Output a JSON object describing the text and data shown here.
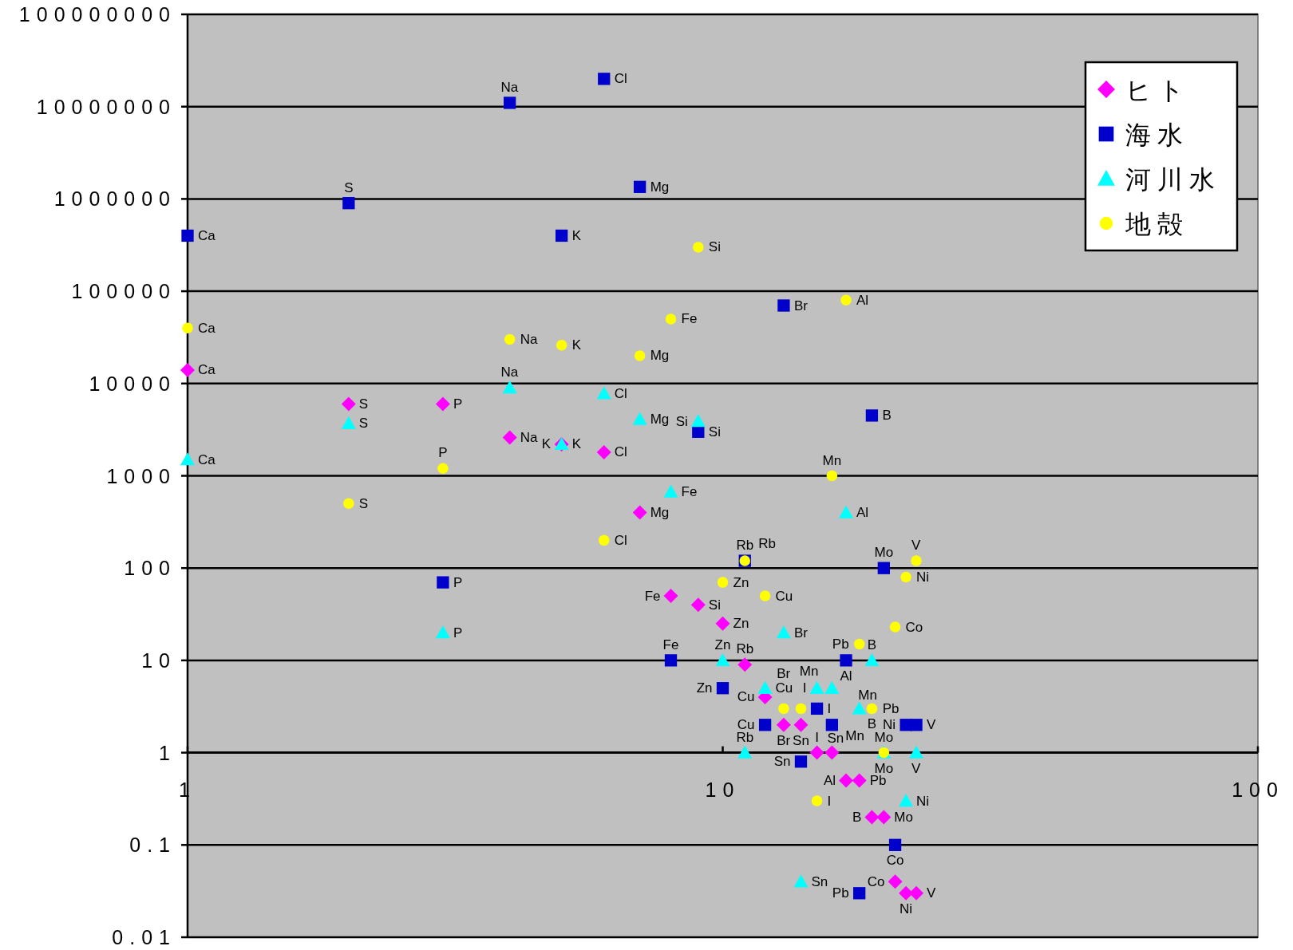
{
  "chart_data": {
    "type": "scatter",
    "x": [
      1,
      2,
      3,
      4,
      5,
      6,
      7,
      8,
      9,
      10,
      11,
      12,
      13,
      14,
      15,
      16,
      17,
      18,
      19,
      20,
      21,
      22,
      23
    ],
    "xlim": [
      1,
      100
    ],
    "xticks": [
      1,
      10,
      100
    ],
    "log": "xy",
    "ylim": [
      0.01,
      100000000
    ],
    "yticks": [
      0.01,
      0.1,
      1,
      10,
      100,
      1000,
      10000,
      100000,
      1000000,
      10000000,
      100000000
    ],
    "grid": "y",
    "legend": "top right",
    "series": [
      {
        "name": "ヒト",
        "color": "#ff00ff",
        "marker": "diamond",
        "values": [
          14000,
          6000,
          6000,
          2600,
          2200,
          1800,
          400,
          50,
          40,
          25,
          9,
          4,
          2,
          2,
          1,
          1,
          0.5,
          0.5,
          0.2,
          0.2,
          0.04,
          0.03,
          0.03
        ]
      },
      {
        "name": "海水",
        "color": "#0000cc",
        "marker": "square",
        "values": [
          400000,
          900000,
          70,
          11000000,
          400000,
          20000000,
          1350000,
          10,
          3000,
          5,
          120,
          2,
          70000,
          0.8,
          3,
          2,
          10,
          0.03,
          4500,
          100,
          0.1,
          2,
          2
        ]
      },
      {
        "name": "河川水",
        "color": "#00ffff",
        "marker": "triangle",
        "values": [
          1500,
          3700,
          20,
          9000,
          2200,
          7800,
          4100,
          670,
          3900,
          10,
          1,
          5,
          20,
          0.04,
          5,
          5,
          400,
          3,
          10,
          1,
          null,
          0.3,
          1
        ]
      },
      {
        "name": "地殻",
        "color": "#ffff00",
        "marker": "circle",
        "values": [
          40000,
          500,
          1200,
          30000,
          26000,
          200,
          20000,
          50000,
          300000,
          70,
          120,
          50,
          3,
          3,
          0.3,
          1000,
          80000,
          15,
          3,
          1,
          23,
          80,
          120
        ]
      }
    ],
    "annotations": [
      {
        "text": "Ca",
        "x": 1,
        "y": 14000
      },
      {
        "text": "S",
        "x": 2,
        "y": 6000
      },
      {
        "text": "P",
        "x": 3,
        "y": 6000
      },
      {
        "text": "Na",
        "x": 4,
        "y": 2600
      },
      {
        "text": "K",
        "x": 5,
        "y": 2200
      },
      {
        "text": "Cl",
        "x": 6,
        "y": 1800
      },
      {
        "text": "Mg",
        "x": 7,
        "y": 400
      },
      {
        "text": "Fe",
        "x": 8,
        "y": 50
      },
      {
        "text": "Si",
        "x": 9,
        "y": 40
      },
      {
        "text": "Zn",
        "x": 10,
        "y": 25
      },
      {
        "text": "Rb",
        "x": 11,
        "y": 9
      },
      {
        "text": "Cu",
        "x": 12,
        "y": 4
      },
      {
        "text": "Br",
        "x": 13,
        "y": 2
      },
      {
        "text": "Sn",
        "x": 14,
        "y": 2
      },
      {
        "text": "I",
        "x": 15,
        "y": 1
      },
      {
        "text": "Mn",
        "x": 16,
        "y": 1
      },
      {
        "text": "Al",
        "x": 17,
        "y": 0.5
      },
      {
        "text": "Pb",
        "x": 18,
        "y": 0.5
      },
      {
        "text": "B",
        "x": 19,
        "y": 0.2
      },
      {
        "text": "Mo",
        "x": 20,
        "y": 0.2
      },
      {
        "text": "Co",
        "x": 21,
        "y": 0.04
      },
      {
        "text": "Ni",
        "x": 22,
        "y": 0.03
      },
      {
        "text": "V",
        "x": 23,
        "y": 0.03
      },
      {
        "text": "Ca",
        "x": 1,
        "y": 400000
      },
      {
        "text": "S",
        "x": 2,
        "y": 900000
      },
      {
        "text": "P",
        "x": 3,
        "y": 70
      },
      {
        "text": "Na",
        "x": 4,
        "y": 11000000
      },
      {
        "text": "K",
        "x": 5,
        "y": 400000
      },
      {
        "text": "Cl",
        "x": 6,
        "y": 20000000
      },
      {
        "text": "Mg",
        "x": 7,
        "y": 1350000
      },
      {
        "text": "Fe",
        "x": 8,
        "y": 10
      },
      {
        "text": "Si",
        "x": 9,
        "y": 3000
      },
      {
        "text": "Zn",
        "x": 10,
        "y": 5
      },
      {
        "text": "Rb",
        "x": 11,
        "y": 120
      },
      {
        "text": "Cu",
        "x": 12,
        "y": 2
      },
      {
        "text": "Br",
        "x": 13,
        "y": 70000
      },
      {
        "text": "Sn",
        "x": 14,
        "y": 0.8
      },
      {
        "text": "I",
        "x": 15,
        "y": 3
      },
      {
        "text": "Mn",
        "x": 16,
        "y": 2
      },
      {
        "text": "Al",
        "x": 17,
        "y": 10
      },
      {
        "text": "Pb",
        "x": 18,
        "y": 0.03
      },
      {
        "text": "B",
        "x": 19,
        "y": 4500
      },
      {
        "text": "Mo",
        "x": 20,
        "y": 100
      },
      {
        "text": "Co",
        "x": 21,
        "y": 0.1
      },
      {
        "text": "Ni",
        "x": 22,
        "y": 2
      },
      {
        "text": "V",
        "x": 23,
        "y": 2
      },
      {
        "text": "Ca",
        "x": 1,
        "y": 1500
      },
      {
        "text": "S",
        "x": 2,
        "y": 3700
      },
      {
        "text": "P",
        "x": 3,
        "y": 20
      },
      {
        "text": "Na",
        "x": 4,
        "y": 9000
      },
      {
        "text": "K",
        "x": 5,
        "y": 2200
      },
      {
        "text": "Cl",
        "x": 6,
        "y": 7800
      },
      {
        "text": "Mg",
        "x": 7,
        "y": 4100
      },
      {
        "text": "Fe",
        "x": 8,
        "y": 670
      },
      {
        "text": "Si",
        "x": 9,
        "y": 3900
      },
      {
        "text": "Zn",
        "x": 10,
        "y": 10
      },
      {
        "text": "Rb",
        "x": 11,
        "y": 1
      },
      {
        "text": "Cu",
        "x": 12,
        "y": 5
      },
      {
        "text": "Br",
        "x": 13,
        "y": 20
      },
      {
        "text": "Sn",
        "x": 14,
        "y": 0.04
      },
      {
        "text": "I",
        "x": 15,
        "y": 5
      },
      {
        "text": "Mn",
        "x": 16,
        "y": 5
      },
      {
        "text": "Al",
        "x": 17,
        "y": 400
      },
      {
        "text": "Pb",
        "x": 18,
        "y": 3
      },
      {
        "text": "B",
        "x": 19,
        "y": 10
      },
      {
        "text": "Mo",
        "x": 20,
        "y": 1
      },
      {
        "text": "Ni",
        "x": 22,
        "y": 0.3
      },
      {
        "text": "V",
        "x": 23,
        "y": 1
      },
      {
        "text": "Ca",
        "x": 1,
        "y": 40000
      },
      {
        "text": "S",
        "x": 2,
        "y": 500
      },
      {
        "text": "P",
        "x": 3,
        "y": 1200
      },
      {
        "text": "Na",
        "x": 4,
        "y": 30000
      },
      {
        "text": "K",
        "x": 5,
        "y": 26000
      },
      {
        "text": "Cl",
        "x": 6,
        "y": 200
      },
      {
        "text": "Mg",
        "x": 7,
        "y": 20000
      },
      {
        "text": "Fe",
        "x": 8,
        "y": 50000
      },
      {
        "text": "Si",
        "x": 9,
        "y": 300000
      },
      {
        "text": "Zn",
        "x": 10,
        "y": 70
      },
      {
        "text": "Rb",
        "x": 11,
        "y": 120
      },
      {
        "text": "Cu",
        "x": 12,
        "y": 50
      },
      {
        "text": "Br",
        "x": 13,
        "y": 3
      },
      {
        "text": "Sn",
        "x": 14,
        "y": 3
      },
      {
        "text": "I",
        "x": 15,
        "y": 0.3
      },
      {
        "text": "Mn",
        "x": 16,
        "y": 1000
      },
      {
        "text": "Al",
        "x": 17,
        "y": 80000
      },
      {
        "text": "Pb",
        "x": 18,
        "y": 15
      },
      {
        "text": "B",
        "x": 19,
        "y": 3
      },
      {
        "text": "Mo",
        "x": 20,
        "y": 1
      },
      {
        "text": "Co",
        "x": 21,
        "y": 23
      },
      {
        "text": "Ni",
        "x": 22,
        "y": 80
      },
      {
        "text": "V",
        "x": 23,
        "y": 120
      }
    ]
  }
}
